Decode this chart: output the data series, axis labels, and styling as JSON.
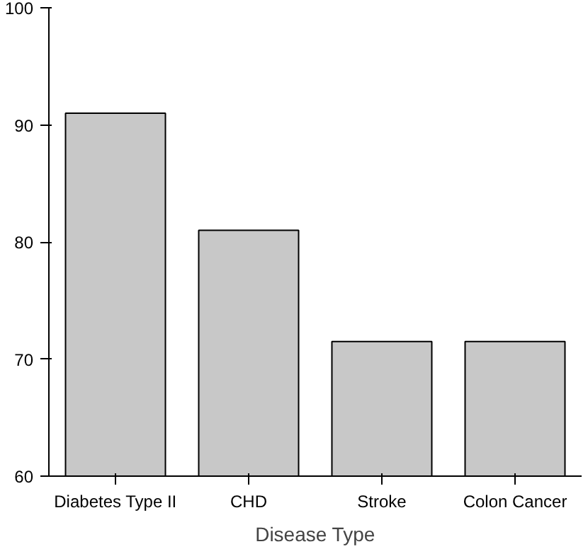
{
  "chart_data": {
    "type": "bar",
    "xlabel": "Disease Type",
    "categories": [
      "Diabetes Type II",
      "CHD",
      "Stroke",
      "Colon Cancer"
    ],
    "values": [
      91,
      81,
      71.5,
      71.5
    ],
    "color": "#c8c8c8",
    "ylim": [
      60,
      100
    ],
    "yticks": [
      60,
      70,
      80,
      90,
      100
    ],
    "grid": false
  }
}
